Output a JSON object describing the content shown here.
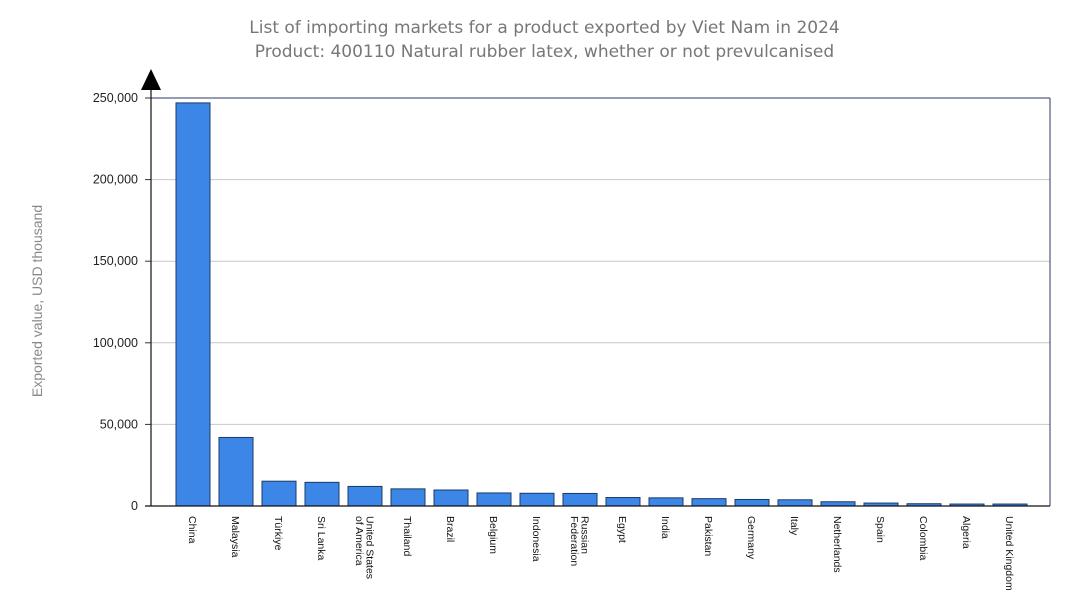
{
  "title_line_1": "List of importing markets for a product exported by Viet Nam in 2024",
  "title_line_2": "Product: 400110 Natural rubber latex, whether or not prevulcanised",
  "colors": {
    "bar_fill": "#3c86e8",
    "bar_stroke": "#1b3a66",
    "plot_border": "#2a3a6a",
    "grid": "#c8c8c8",
    "title": "#777777",
    "axis_label": "#888888"
  },
  "chart_data": {
    "type": "bar",
    "title": "List of importing markets for a product exported by Viet Nam in 2024",
    "subtitle": "Product: 400110 Natural rubber latex, whether or not prevulcanised",
    "xlabel": "",
    "ylabel": "Exported value, USD thousand",
    "ylim": [
      0,
      250000
    ],
    "yticks": [
      {
        "value": 0,
        "label": "0"
      },
      {
        "value": 50000,
        "label": "50,000"
      },
      {
        "value": 100000,
        "label": "100,000"
      },
      {
        "value": 150000,
        "label": "150,000"
      },
      {
        "value": 200000,
        "label": "200,000"
      },
      {
        "value": 250000,
        "label": "250,000"
      }
    ],
    "grid": true,
    "categories": [
      [
        "China"
      ],
      [
        "Malaysia"
      ],
      [
        "Türkiye"
      ],
      [
        "Sri Lanka"
      ],
      [
        "United States",
        "of America"
      ],
      [
        "Thailand"
      ],
      [
        "Brazil"
      ],
      [
        "Belgium"
      ],
      [
        "Indonesia"
      ],
      [
        "Russian",
        "Federation"
      ],
      [
        "Egypt"
      ],
      [
        "India"
      ],
      [
        "Pakistan"
      ],
      [
        "Germany"
      ],
      [
        "Italy"
      ],
      [
        "Netherlands"
      ],
      [
        "Spain"
      ],
      [
        "Colombia"
      ],
      [
        "Algeria"
      ],
      [
        "United Kingdom"
      ]
    ],
    "values": [
      247000,
      42000,
      15200,
      14500,
      12000,
      10500,
      9800,
      8000,
      7800,
      7700,
      5200,
      5000,
      4500,
      4000,
      3800,
      2600,
      1800,
      1400,
      1200,
      1200
    ]
  }
}
